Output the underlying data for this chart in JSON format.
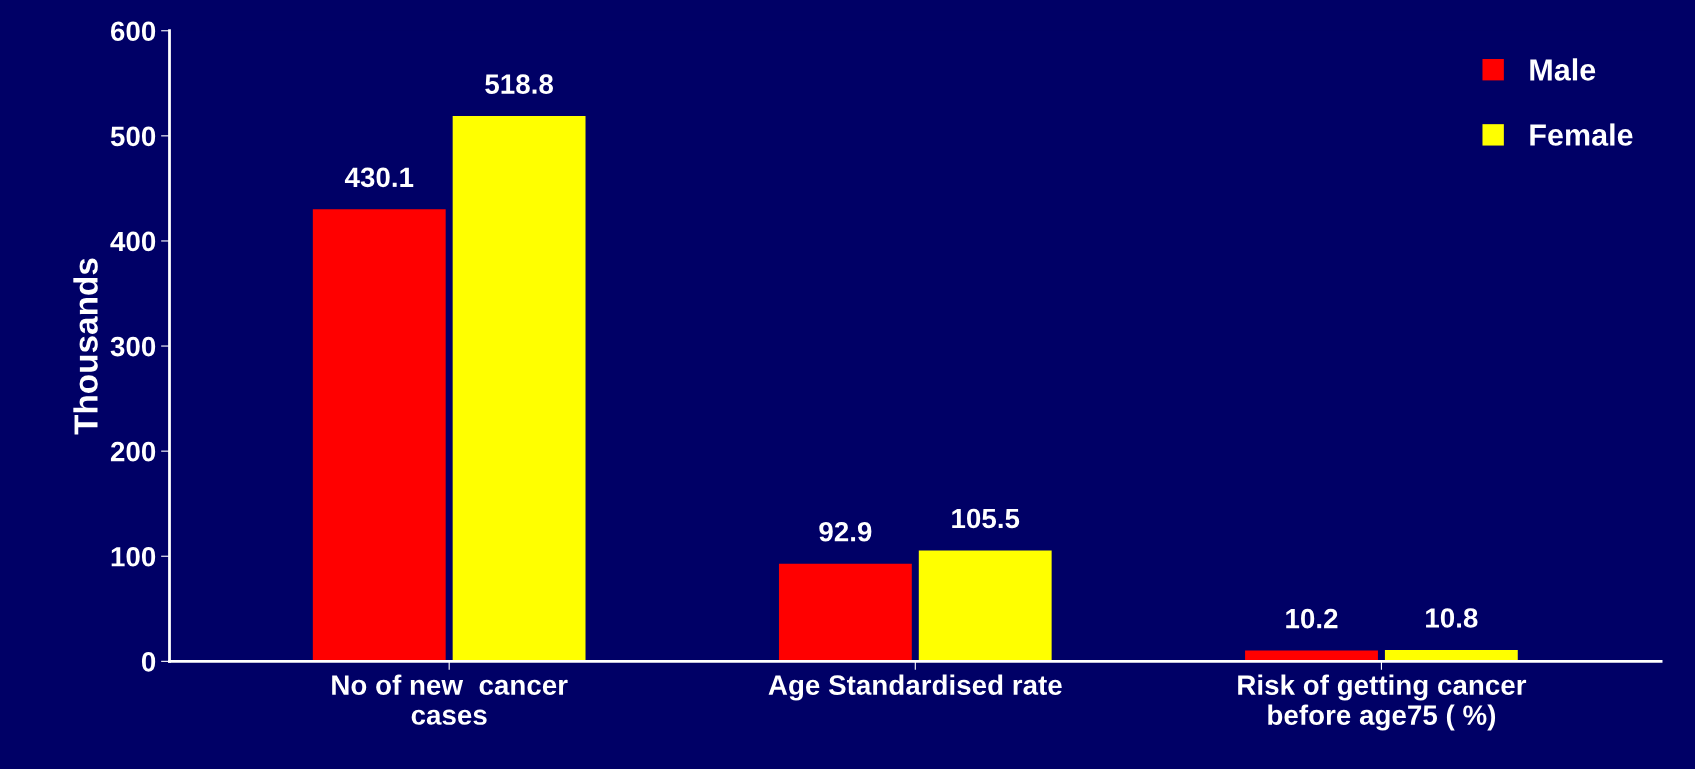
{
  "chart_data": {
    "type": "bar",
    "ylabel": "Thousands",
    "categories": [
      "No of new  cancer\ncases",
      "Age Standardised rate",
      "Risk of getting cancer\nbefore age75 ( %)"
    ],
    "series": [
      {
        "name": "Male",
        "color": "#ff0000",
        "values": [
          430.1,
          92.9,
          10.2
        ]
      },
      {
        "name": "Female",
        "color": "#ffff00",
        "values": [
          518.8,
          105.5,
          10.8
        ]
      }
    ],
    "ylim": [
      0,
      600
    ],
    "yticks": [
      0,
      100,
      200,
      300,
      400,
      500,
      600
    ],
    "data_labels": true,
    "grid": false,
    "legend": "top right"
  }
}
